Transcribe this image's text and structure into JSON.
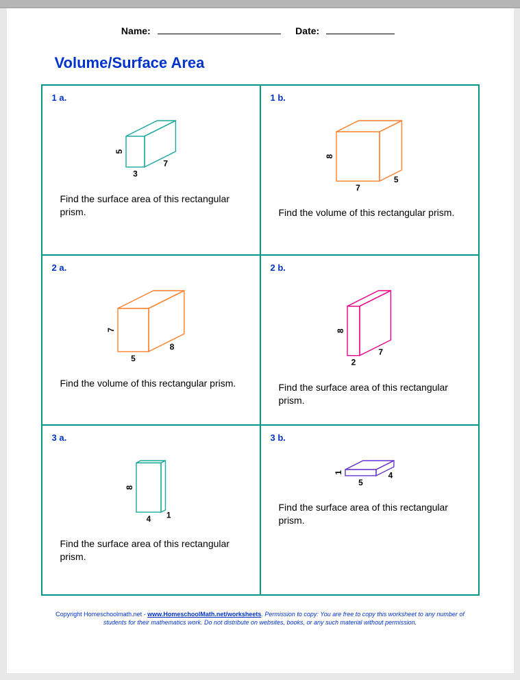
{
  "header": {
    "name_label": "Name:",
    "date_label": "Date:"
  },
  "title": "Volume/Surface Area",
  "problems": [
    {
      "label": "1 a.",
      "instruction": "Find the surface area of this rectangular prism.",
      "dims": {
        "w": "3",
        "d": "7",
        "h": "5"
      },
      "color": "#1aa99c"
    },
    {
      "label": "1 b.",
      "instruction": "Find the volume of this rectangular prism.",
      "dims": {
        "w": "7",
        "d": "5",
        "h": "8"
      },
      "color": "#ff7f27"
    },
    {
      "label": "2 a.",
      "instruction": "Find the volume of this rectangular prism.",
      "dims": {
        "w": "5",
        "d": "8",
        "h": "7"
      },
      "color": "#ff7f27"
    },
    {
      "label": "2 b.",
      "instruction": "Find the surface area of this rectangular prism.",
      "dims": {
        "w": "2",
        "d": "7",
        "h": "8"
      },
      "color": "#ec008c"
    },
    {
      "label": "3 a.",
      "instruction": "Find the surface area of this rectangular prism.",
      "dims": {
        "w": "4",
        "d": "1",
        "h": "8"
      },
      "color": "#1aa99c"
    },
    {
      "label": "3 b.",
      "instruction": "Find the surface area of this rectangular prism.",
      "dims": {
        "w": "5",
        "d": "4",
        "h": "1"
      },
      "color": "#6633cc"
    }
  ],
  "geometry": {
    "scale": 9,
    "iso_dx": 0.72,
    "iso_dy": 0.36,
    "stroke_width": 1.4,
    "label_font_size": 12,
    "label_font_weight": "bold",
    "label_color": "#000000"
  },
  "copyright": {
    "prefix": "Copyright Homeschoolmath.net - ",
    "link_text": "www.HomeschoolMath.net/worksheets",
    "rest": ". Permission to copy: You are free to copy this worksheet to any number of students for their mathematics work. Do not distribute on websites, books, or any such material without permission."
  }
}
